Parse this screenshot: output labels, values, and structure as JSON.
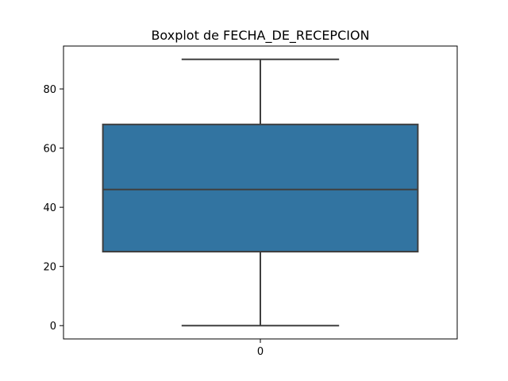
{
  "chart_data": {
    "type": "boxplot",
    "title": "Boxplot de FECHA_DE_RECEPCION",
    "xlabel": "",
    "ylabel": "",
    "categories": [
      "0"
    ],
    "boxes": [
      {
        "category": "0",
        "min": 0,
        "q1": 25,
        "median": 46,
        "q3": 68,
        "max": 90
      }
    ],
    "yticks": [
      0,
      20,
      40,
      60,
      80
    ],
    "ylim": [
      -4.5,
      94.5
    ],
    "grid": false,
    "legend": "none",
    "colors": {
      "box_fill": "#3274a1",
      "line": "#3f3f3f",
      "frame": "#000000"
    }
  }
}
